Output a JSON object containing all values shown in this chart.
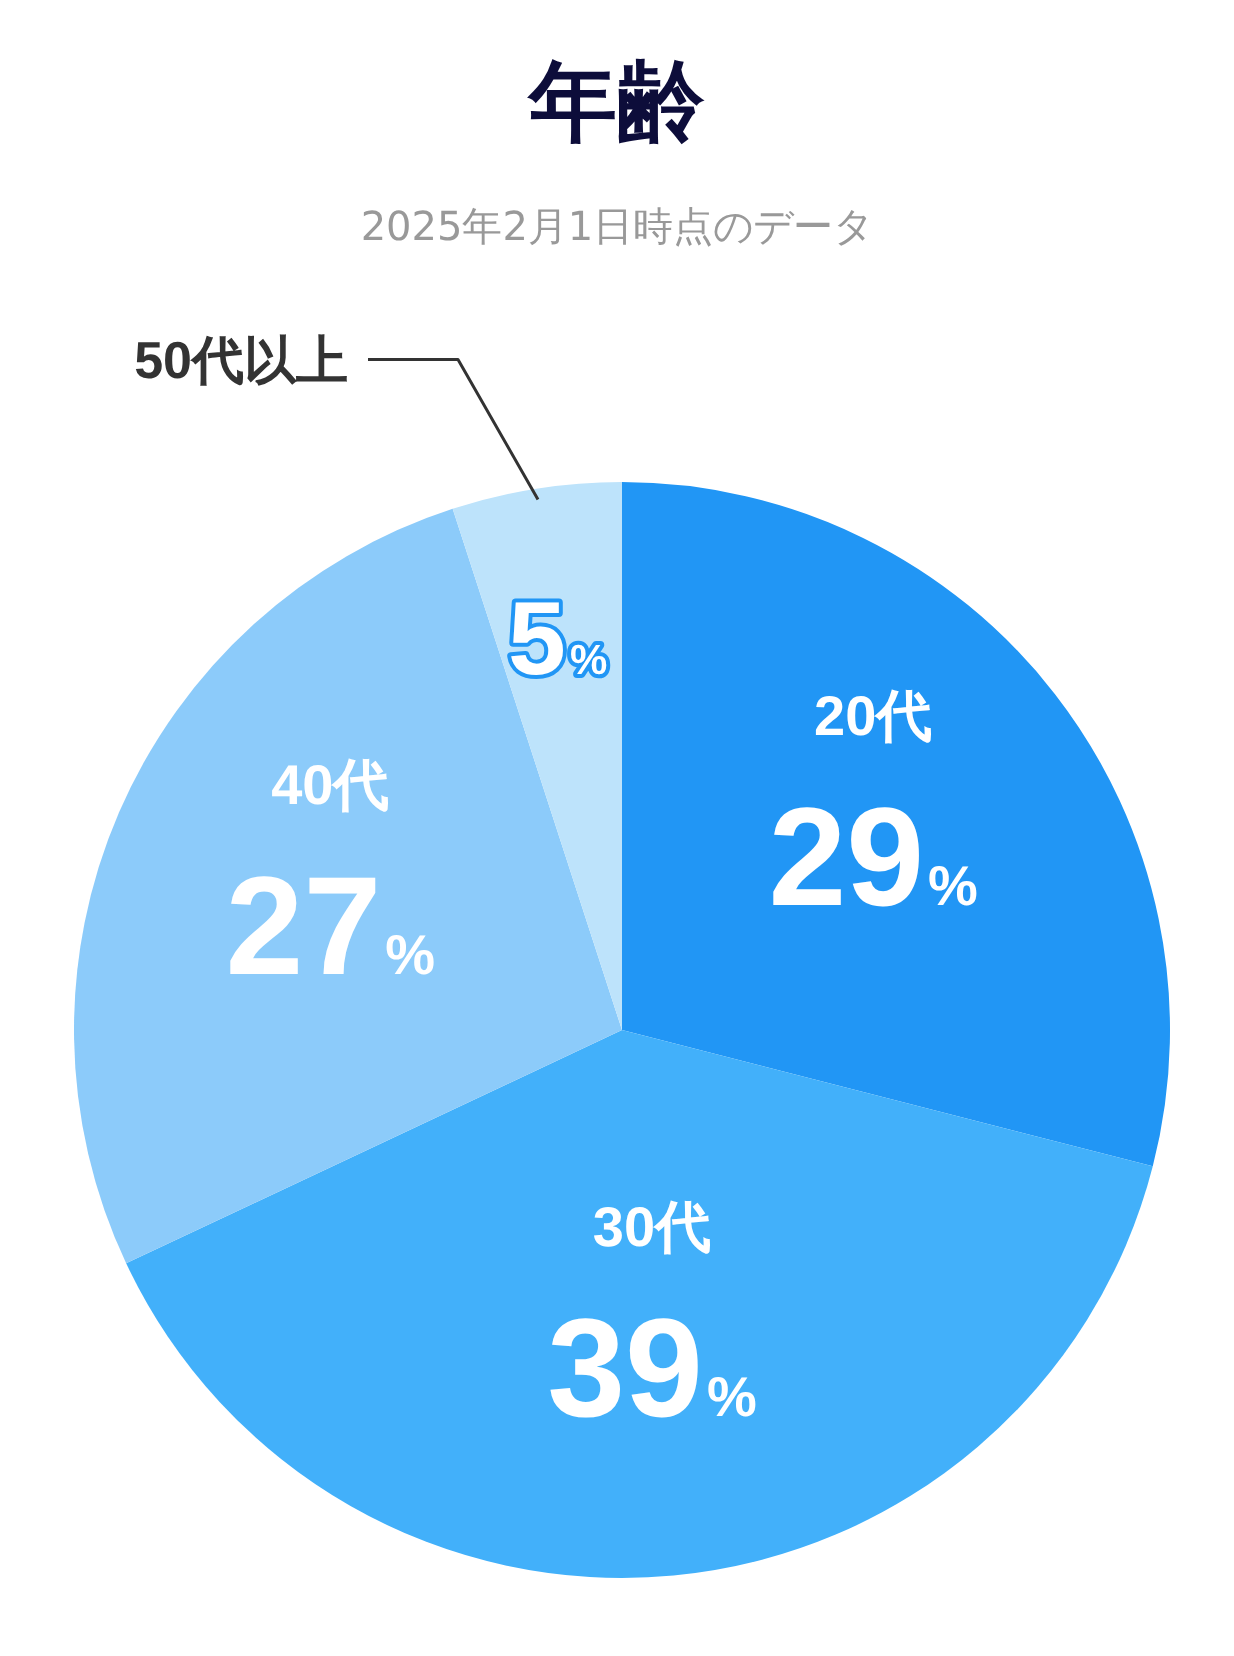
{
  "chart_data": {
    "type": "pie",
    "title": "年齢",
    "subtitle": "2025年2月1日時点のデータ",
    "categories": [
      "20代",
      "30代",
      "40代",
      "50代以上"
    ],
    "values": [
      29,
      39,
      27,
      5
    ],
    "value_labels": [
      "29%",
      "39%",
      "27%",
      "5%"
    ],
    "colors": [
      "#2196f5",
      "#42b0fa",
      "#8ccbfa",
      "#bde3fb"
    ],
    "legend": false
  }
}
